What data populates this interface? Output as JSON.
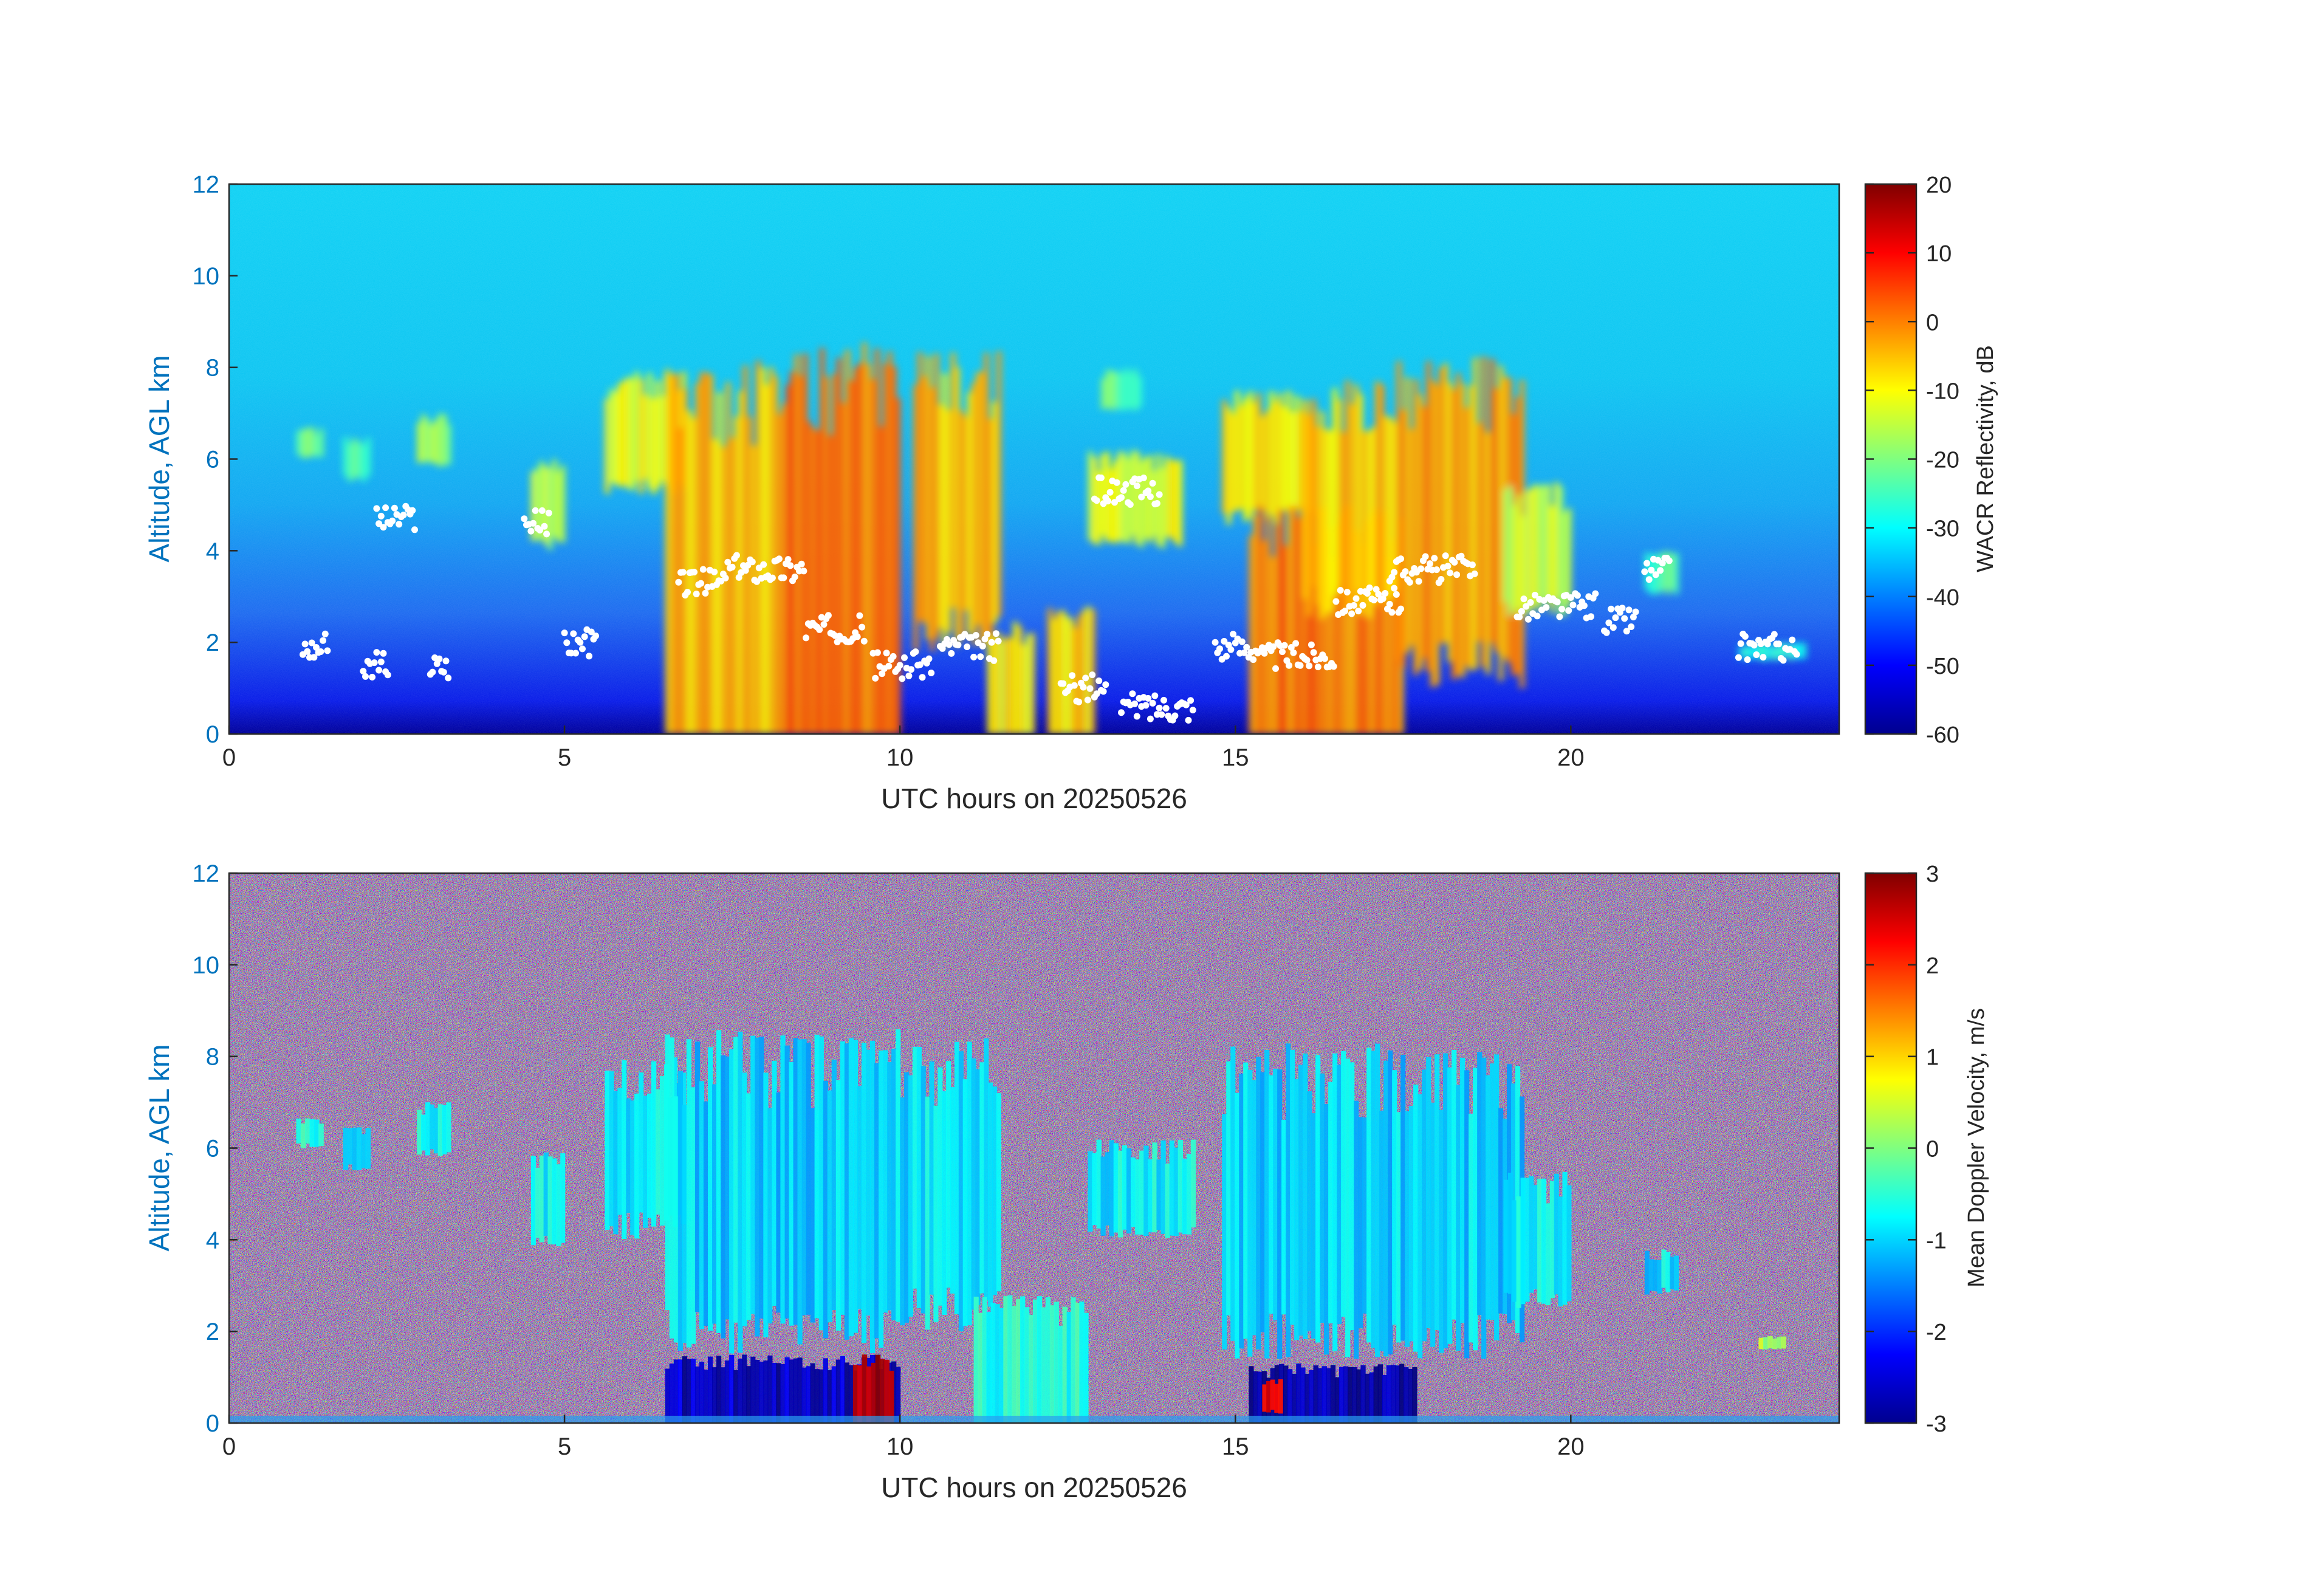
{
  "chart_data": [
    {
      "type": "heatmap",
      "xlabel": "UTC hours on 20250526",
      "ylabel": "Altitude, AGL km",
      "xlim": [
        0,
        24
      ],
      "ylim": [
        0,
        12
      ],
      "xticks": [
        0,
        5,
        10,
        15,
        20
      ],
      "yticks": [
        0,
        2,
        4,
        6,
        8,
        10,
        12
      ],
      "colorbar": {
        "label": "WACR Reflectivity, dB",
        "range": [
          -60,
          20
        ],
        "ticks": [
          20,
          10,
          0,
          -10,
          -20,
          -30,
          -40,
          -50,
          -60
        ],
        "colormap": "jet"
      },
      "background": {
        "surface_value": -60,
        "top_value": -33
      },
      "features": [
        {
          "t0": 1.0,
          "t1": 1.4,
          "base": 6.0,
          "top": 6.7,
          "value": -22
        },
        {
          "t0": 1.7,
          "t1": 2.1,
          "base": 5.5,
          "top": 6.5,
          "value": -22
        },
        {
          "t0": 2.8,
          "t1": 3.3,
          "base": 5.8,
          "top": 7.0,
          "value": -18
        },
        {
          "t0": 4.5,
          "t1": 5.0,
          "base": 4.0,
          "top": 6.0,
          "value": -15
        },
        {
          "t0": 5.6,
          "t1": 6.8,
          "base": 5.2,
          "top": 8.0,
          "value": -12
        },
        {
          "t0": 6.5,
          "t1": 8.3,
          "base": 0.0,
          "top": 8.2,
          "value": -5
        },
        {
          "t0": 8.3,
          "t1": 10.0,
          "base": 0.0,
          "top": 8.6,
          "value": 2
        },
        {
          "t0": 10.2,
          "t1": 11.5,
          "base": 1.8,
          "top": 8.4,
          "value": -5
        },
        {
          "t0": 11.3,
          "t1": 12.0,
          "base": 0.0,
          "top": 2.6,
          "value": -10
        },
        {
          "t0": 12.2,
          "t1": 12.9,
          "base": 0.0,
          "top": 2.8,
          "value": -8
        },
        {
          "t0": 12.8,
          "t1": 14.2,
          "base": 4.0,
          "top": 6.2,
          "value": -12
        },
        {
          "t0": 13.0,
          "t1": 13.6,
          "base": 7.0,
          "top": 8.0,
          "value": -22
        },
        {
          "t0": 14.8,
          "t1": 16.2,
          "base": 4.5,
          "top": 7.5,
          "value": -8
        },
        {
          "t0": 15.2,
          "t1": 17.5,
          "base": 0.0,
          "top": 5.0,
          "value": 0
        },
        {
          "t0": 16.0,
          "t1": 17.4,
          "base": 2.5,
          "top": 7.8,
          "value": -6
        },
        {
          "t0": 17.4,
          "t1": 19.3,
          "base": 1.0,
          "top": 8.3,
          "value": -3
        },
        {
          "t0": 19.0,
          "t1": 20.0,
          "base": 2.5,
          "top": 5.5,
          "value": -14
        },
        {
          "t0": 21.1,
          "t1": 21.6,
          "base": 3.0,
          "top": 4.0,
          "value": -25
        },
        {
          "t0": 22.5,
          "t1": 23.5,
          "base": 1.6,
          "top": 2.0,
          "value": -28
        }
      ]
    },
    {
      "type": "heatmap",
      "xlabel": "UTC hours on 20250526",
      "ylabel": "Altitude, AGL km",
      "xlim": [
        0,
        24
      ],
      "ylim": [
        0,
        12
      ],
      "xticks": [
        0,
        5,
        10,
        15,
        20
      ],
      "yticks": [
        0,
        2,
        4,
        6,
        8,
        10,
        12
      ],
      "colorbar": {
        "label": "Mean Doppler Velocity, m/s",
        "range": [
          -3,
          3
        ],
        "ticks": [
          3,
          2,
          1,
          0,
          -1,
          -2,
          -3
        ],
        "colormap": "jet"
      },
      "background": {
        "description_value": "noise"
      },
      "features": [
        {
          "t0": 1.0,
          "t1": 1.4,
          "base": 6.0,
          "top": 6.7,
          "value": -0.6
        },
        {
          "t0": 1.7,
          "t1": 2.1,
          "base": 5.5,
          "top": 6.5,
          "value": -0.8
        },
        {
          "t0": 2.8,
          "t1": 3.3,
          "base": 5.8,
          "top": 7.0,
          "value": -0.7
        },
        {
          "t0": 4.5,
          "t1": 5.0,
          "base": 3.8,
          "top": 6.0,
          "value": -0.8
        },
        {
          "t0": 5.6,
          "t1": 6.8,
          "base": 4.0,
          "top": 8.0,
          "value": -0.9
        },
        {
          "t0": 6.5,
          "t1": 10.0,
          "base": 1.5,
          "top": 8.6,
          "value": -1.0
        },
        {
          "t0": 6.5,
          "t1": 10.0,
          "base": 0.0,
          "top": 1.5,
          "value": -2.6
        },
        {
          "t0": 9.3,
          "t1": 9.9,
          "base": 0.0,
          "top": 1.5,
          "value": 2.6
        },
        {
          "t0": 10.0,
          "t1": 11.5,
          "base": 2.0,
          "top": 8.4,
          "value": -0.9
        },
        {
          "t0": 11.1,
          "t1": 12.8,
          "base": 0.0,
          "top": 2.8,
          "value": -0.6
        },
        {
          "t0": 12.8,
          "t1": 14.4,
          "base": 4.0,
          "top": 6.2,
          "value": -0.8
        },
        {
          "t0": 14.8,
          "t1": 19.3,
          "base": 1.4,
          "top": 8.3,
          "value": -1.0
        },
        {
          "t0": 15.2,
          "t1": 17.7,
          "base": 0.0,
          "top": 1.3,
          "value": -2.8
        },
        {
          "t0": 15.4,
          "t1": 15.7,
          "base": 0.2,
          "top": 1.0,
          "value": 2.5
        },
        {
          "t0": 19.0,
          "t1": 20.0,
          "base": 2.5,
          "top": 5.5,
          "value": -0.8
        },
        {
          "t0": 21.1,
          "t1": 21.6,
          "base": 2.8,
          "top": 3.8,
          "value": -0.9
        },
        {
          "t0": 22.8,
          "t1": 23.2,
          "base": 1.6,
          "top": 1.9,
          "value": 0.3
        }
      ]
    }
  ]
}
